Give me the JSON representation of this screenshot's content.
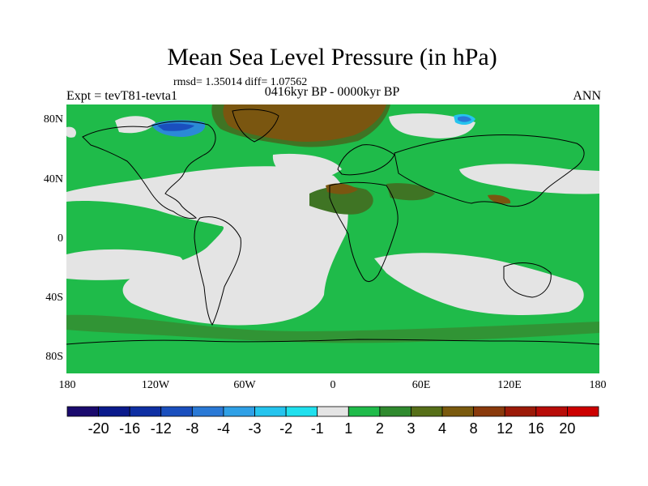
{
  "title": "Mean Sea Level Pressure (in hPa)",
  "stats": "rmsd= 1.35014  diff= 1.07562",
  "period": "0416kyr BP - 0000kyr BP",
  "expt": "Expt = tevT81-tevta1",
  "season": "ANN",
  "y_ticks": [
    "80N",
    "40N",
    "0",
    "40S",
    "80S"
  ],
  "x_ticks": [
    "180",
    "120W",
    "60W",
    "0",
    "60E",
    "120E",
    "180"
  ],
  "colorbar": {
    "labels": [
      "-20",
      "-16",
      "-12",
      "-8",
      "-4",
      "-3",
      "-2",
      "-1",
      "1",
      "2",
      "3",
      "4",
      "8",
      "12",
      "16",
      "20"
    ],
    "colors": [
      "#1a0a6e",
      "#0a1a8c",
      "#0e2fa3",
      "#1a4fbe",
      "#2a79d6",
      "#2fa0e6",
      "#25c4ee",
      "#20e0ee",
      "#e4e4e4",
      "#1fbb4a",
      "#2f8a2e",
      "#566f18",
      "#7a5a0e",
      "#8a3a0c",
      "#9c1a08",
      "#b80c08",
      "#cc0000"
    ]
  },
  "colors": {
    "green": "#1fbb4a",
    "light": "#e4e4e4",
    "brown": "#7a5610",
    "olive": "#3f7424",
    "blue": "#2b8ad6"
  }
}
